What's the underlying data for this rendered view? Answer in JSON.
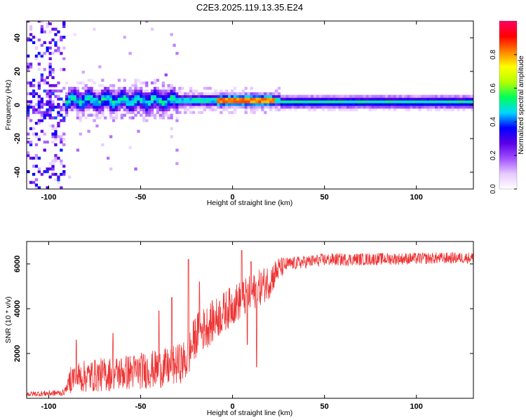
{
  "title": "C2E3.2025.119.13.35.E24",
  "chart_data": [
    {
      "type": "heatmap",
      "xlabel": "Height of straight line (km)",
      "ylabel": "Frequency (Hz)",
      "xlim": [
        -112,
        131
      ],
      "ylim": [
        -50,
        50
      ],
      "xticks": [
        -100,
        -50,
        0,
        50,
        100
      ],
      "yticks": [
        -40,
        -20,
        0,
        20,
        40
      ],
      "colorbar": {
        "label": "Normalized spectral amplitude",
        "range": [
          0.0,
          1.0
        ],
        "ticks": [
          0.0,
          0.2,
          0.4,
          0.6,
          0.8
        ],
        "tick_labels": [
          "0.0",
          "0.2",
          "0.4",
          "0.6",
          "0.8"
        ],
        "colormap": [
          "#ffffff",
          "#e6c8ff",
          "#a050ff",
          "#5a00e6",
          "#0000ff",
          "#00d8ff",
          "#00ff5a",
          "#b4ff00",
          "#ffff00",
          "#ff8000",
          "#ff0000",
          "#ff0064"
        ]
      },
      "features": [
        {
          "x_range": [
            -112,
            -92
          ],
          "description_level": 0.15,
          "freq_spread": 50
        },
        {
          "x_range": [
            -92,
            -30
          ],
          "center_freq": 2,
          "half_width": 6,
          "peak_amplitude": 0.45
        },
        {
          "x_range": [
            -30,
            25
          ],
          "center_freq": 2,
          "half_width": 3,
          "peak_amplitude": 1.0
        },
        {
          "x_range": [
            25,
            131
          ],
          "center_freq": 1,
          "half_width": 2,
          "peak_amplitude": 0.5
        }
      ]
    },
    {
      "type": "line",
      "xlabel": "Height of straight line (km)",
      "ylabel": "SNR (10 * v/v)",
      "xlim": [
        -112,
        131
      ],
      "ylim": [
        0,
        7000
      ],
      "xticks": [
        -100,
        -50,
        0,
        50,
        100
      ],
      "yticks": [
        2000,
        4000,
        6000
      ],
      "color": "#ee3333",
      "trend": [
        {
          "x": -112,
          "y": 150
        },
        {
          "x": -92,
          "y": 200
        },
        {
          "x": -88,
          "y": 700
        },
        {
          "x": -60,
          "y": 900
        },
        {
          "x": -35,
          "y": 1100
        },
        {
          "x": -25,
          "y": 1400
        },
        {
          "x": -20,
          "y": 2500
        },
        {
          "x": -10,
          "y": 3200
        },
        {
          "x": 0,
          "y": 3900
        },
        {
          "x": 10,
          "y": 4400
        },
        {
          "x": 20,
          "y": 5000
        },
        {
          "x": 25,
          "y": 5600
        },
        {
          "x": 30,
          "y": 5900
        },
        {
          "x": 50,
          "y": 6100
        },
        {
          "x": 131,
          "y": 6200
        }
      ],
      "noise_amplitude": [
        {
          "x": -112,
          "a": 120
        },
        {
          "x": -90,
          "a": 150
        },
        {
          "x": -88,
          "a": 700
        },
        {
          "x": -30,
          "a": 900
        },
        {
          "x": -20,
          "a": 1000
        },
        {
          "x": 20,
          "a": 800
        },
        {
          "x": 30,
          "a": 300
        },
        {
          "x": 131,
          "a": 250
        }
      ],
      "spikes": [
        {
          "x": -85,
          "y": 2600
        },
        {
          "x": -65,
          "y": 2900
        },
        {
          "x": -40,
          "y": 3900
        },
        {
          "x": -33,
          "y": 4500
        },
        {
          "x": -24,
          "y": 6200
        },
        {
          "x": -18,
          "y": 5200
        },
        {
          "x": 5,
          "y": 6600
        },
        {
          "x": 10,
          "y": 6100
        },
        {
          "x": 13,
          "y": 1400
        },
        {
          "x": 8,
          "y": 2400
        }
      ]
    }
  ]
}
